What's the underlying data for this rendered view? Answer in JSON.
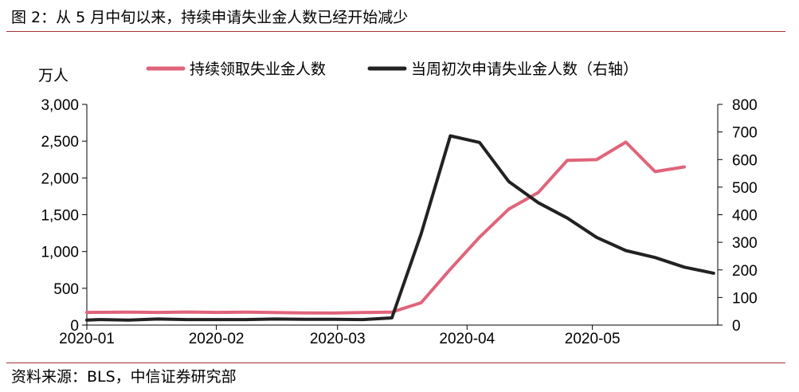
{
  "title": "图 2：从 5 月中旬以来，持续申请失业金人数已经开始减少",
  "source": "资料来源：BLS，中信证券研究部",
  "chart_data": {
    "type": "line",
    "title": "",
    "left_axis_unit": "万人",
    "x_ticks": [
      {
        "label": "2020-01",
        "date": "2020-01-01"
      },
      {
        "label": "2020-02",
        "date": "2020-02-01"
      },
      {
        "label": "2020-03",
        "date": "2020-03-01"
      },
      {
        "label": "2020-04",
        "date": "2020-04-01"
      },
      {
        "label": "2020-05",
        "date": "2020-05-01"
      }
    ],
    "x_range": [
      "2020-01-01",
      "2020-05-31"
    ],
    "y_left": {
      "range": [
        0,
        3000
      ],
      "ticks": [
        0,
        500,
        1000,
        1500,
        2000,
        2500,
        3000
      ],
      "tick_labels": [
        "0",
        "500",
        "1,000",
        "1,500",
        "2,000",
        "2,500",
        "3,000"
      ]
    },
    "y_right": {
      "range": [
        0,
        800
      ],
      "ticks": [
        0,
        100,
        200,
        300,
        400,
        500,
        600,
        700,
        800
      ],
      "tick_labels": [
        "0",
        "100",
        "200",
        "300",
        "400",
        "500",
        "600",
        "700",
        "800"
      ]
    },
    "grid": false,
    "legend_position": "top",
    "series": [
      {
        "name": "持续领取失业金人数",
        "axis": "left",
        "color": "#e0647a",
        "x": [
          "2020-01-01",
          "2020-01-04",
          "2020-01-11",
          "2020-01-18",
          "2020-01-25",
          "2020-02-01",
          "2020-02-08",
          "2020-02-15",
          "2020-02-22",
          "2020-02-29",
          "2020-03-07",
          "2020-03-14",
          "2020-03-21",
          "2020-03-28",
          "2020-04-04",
          "2020-04-11",
          "2020-04-18",
          "2020-04-25",
          "2020-05-02",
          "2020-05-09",
          "2020-05-16",
          "2020-05-23"
        ],
        "values": [
          172,
          173,
          176,
          172,
          178,
          172,
          175,
          171,
          166,
          163,
          170,
          177,
          303,
          760,
          1195,
          1577,
          1800,
          2240,
          2248,
          2487,
          2086,
          2150
        ]
      },
      {
        "name": "当周初次申请失业金人数（右轴）",
        "axis": "right",
        "color": "#222222",
        "x": [
          "2020-01-01",
          "2020-01-04",
          "2020-01-11",
          "2020-01-18",
          "2020-01-25",
          "2020-02-01",
          "2020-02-08",
          "2020-02-15",
          "2020-02-22",
          "2020-02-29",
          "2020-03-07",
          "2020-03-14",
          "2020-03-21",
          "2020-03-28",
          "2020-04-04",
          "2020-04-11",
          "2020-04-18",
          "2020-04-25",
          "2020-05-02",
          "2020-05-09",
          "2020-05-16",
          "2020-05-23",
          "2020-05-30"
        ],
        "values": [
          18,
          20,
          18,
          22,
          20,
          20,
          20,
          22,
          21,
          21,
          20,
          26,
          330,
          686,
          662,
          520,
          444,
          388,
          318,
          270,
          245,
          210,
          188
        ]
      }
    ]
  }
}
